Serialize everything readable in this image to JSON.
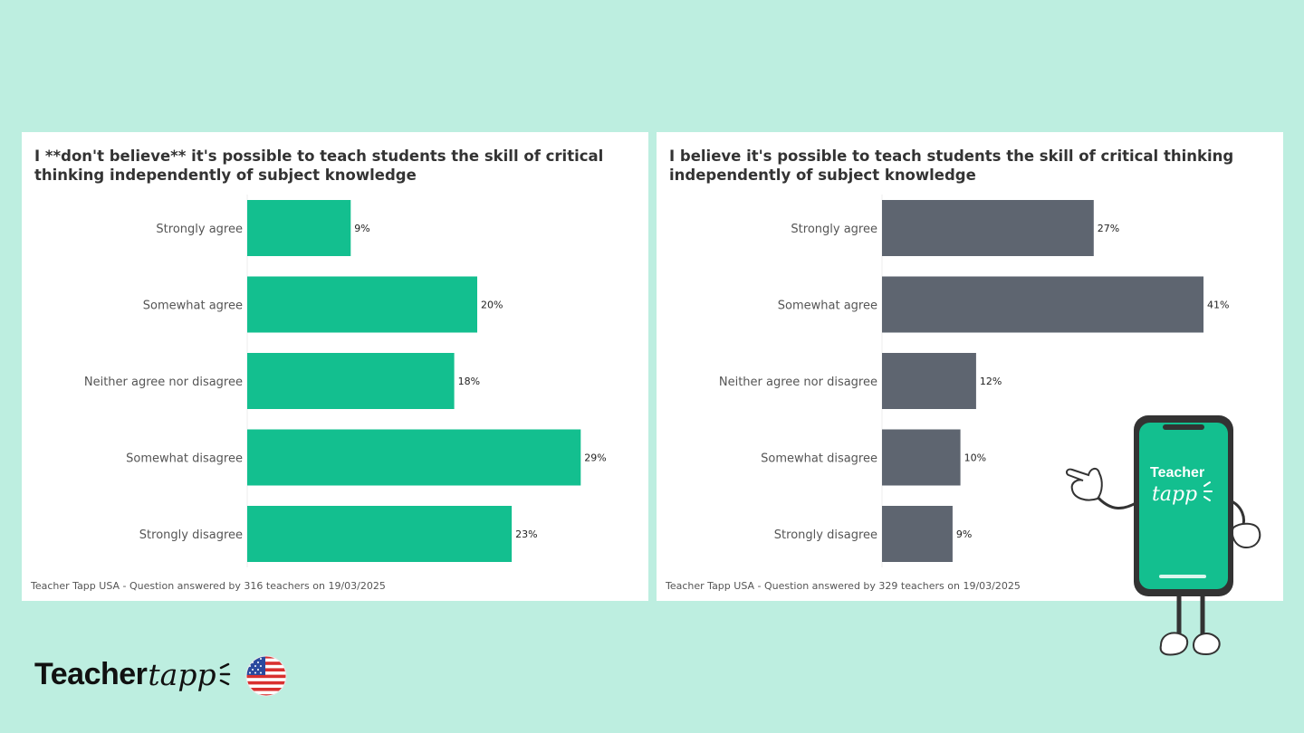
{
  "chart_data": [
    {
      "type": "bar",
      "orientation": "horizontal",
      "title": "I **don't believe** it's possible to teach students the skill of critical thinking independently of subject knowledge",
      "categories": [
        "Strongly agree",
        "Somewhat agree",
        "Neither agree nor disagree",
        "Somewhat disagree",
        "Strongly disagree"
      ],
      "values": [
        9,
        20,
        18,
        29,
        23
      ],
      "value_labels": [
        "9%",
        "20%",
        "18%",
        "29%",
        "23%"
      ],
      "unit": "%",
      "xlim": [
        0,
        30
      ],
      "bar_color": "#13bf8f",
      "footer": "Teacher Tapp USA - Question answered by 316 teachers on 19/03/2025"
    },
    {
      "type": "bar",
      "orientation": "horizontal",
      "title": "I believe it's possible to teach students the skill of critical thinking independently of subject knowledge",
      "categories": [
        "Strongly agree",
        "Somewhat agree",
        "Neither agree nor disagree",
        "Somewhat disagree",
        "Strongly disagree"
      ],
      "values": [
        27,
        41,
        12,
        10,
        9
      ],
      "value_labels": [
        "27%",
        "41%",
        "12%",
        "10%",
        "9%"
      ],
      "unit": "%",
      "xlim": [
        0,
        44
      ],
      "bar_color": "#5e6570",
      "footer": "Teacher Tapp USA - Question answered by 329 teachers on 19/03/2025"
    }
  ],
  "brand": {
    "word": "Teacher",
    "script": "tapp",
    "mascot_text_1": "Teacher",
    "mascot_text_2": "tapp",
    "flag": "us-flag-icon"
  },
  "colors": {
    "background": "#bdeee0",
    "accent": "#13bf8f",
    "grey_bar": "#5e6570"
  }
}
